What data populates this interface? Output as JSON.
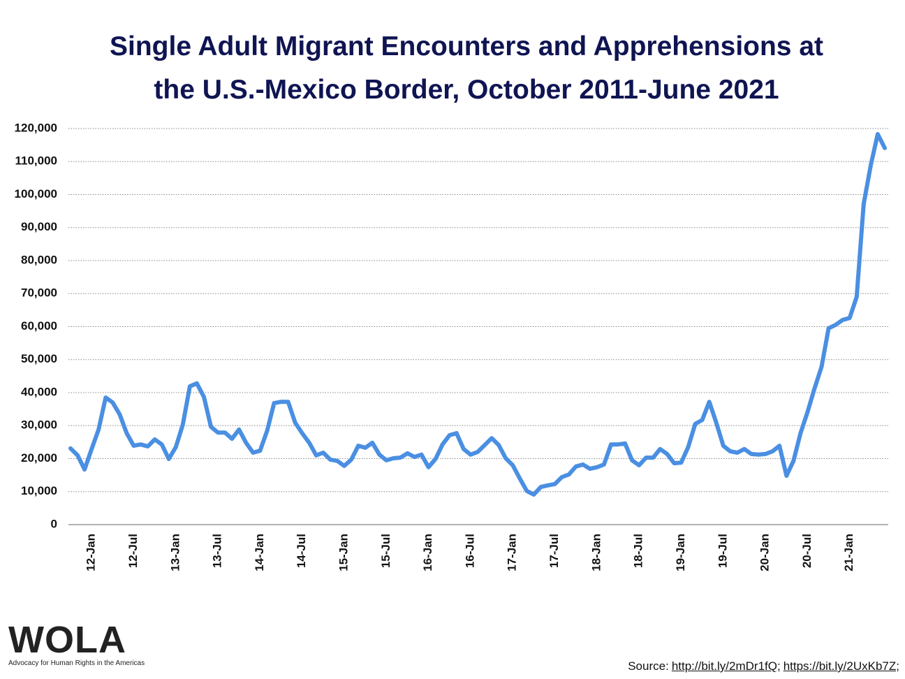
{
  "chart_data": {
    "type": "line",
    "title": "Single Adult Migrant Encounters and Apprehensions at\nthe U.S.-Mexico Border, October 2011-June 2021",
    "categories": [
      null,
      null,
      null,
      "12-Jan",
      null,
      null,
      null,
      null,
      null,
      "12-Jul",
      null,
      null,
      null,
      null,
      null,
      "13-Jan",
      null,
      null,
      null,
      null,
      null,
      "13-Jul",
      null,
      null,
      null,
      null,
      null,
      "14-Jan",
      null,
      null,
      null,
      null,
      null,
      "14-Jul",
      null,
      null,
      null,
      null,
      null,
      "15-Jan",
      null,
      null,
      null,
      null,
      null,
      "15-Jul",
      null,
      null,
      null,
      null,
      null,
      "16-Jan",
      null,
      null,
      null,
      null,
      null,
      "16-Jul",
      null,
      null,
      null,
      null,
      null,
      "17-Jan",
      null,
      null,
      null,
      null,
      null,
      "17-Jul",
      null,
      null,
      null,
      null,
      null,
      "18-Jan",
      null,
      null,
      null,
      null,
      null,
      "18-Jul",
      null,
      null,
      null,
      null,
      null,
      "19-Jan",
      null,
      null,
      null,
      null,
      null,
      "19-Jul",
      null,
      null,
      null,
      null,
      null,
      "20-Jan",
      null,
      null,
      null,
      null,
      null,
      "20-Jul",
      null,
      null,
      null,
      null,
      null,
      "21-Jan",
      null,
      null,
      null,
      null,
      null
    ],
    "values": [
      23100,
      21000,
      16700,
      22900,
      28800,
      38500,
      37000,
      33400,
      27700,
      23900,
      24300,
      23700,
      25800,
      24300,
      19900,
      23500,
      30300,
      41900,
      42800,
      38700,
      29600,
      27900,
      27900,
      26000,
      28800,
      24800,
      21800,
      22400,
      28400,
      36800,
      37200,
      37200,
      30900,
      27700,
      24800,
      21000,
      21800,
      19700,
      19300,
      17800,
      19700,
      23900,
      23300,
      24800,
      21200,
      19500,
      20100,
      20300,
      21600,
      20500,
      21200,
      17400,
      19900,
      24300,
      27100,
      27700,
      22900,
      21200,
      22000,
      24100,
      26200,
      24100,
      20100,
      18000,
      14000,
      10200,
      9100,
      11400,
      11900,
      12300,
      14400,
      15200,
      17600,
      18200,
      16900,
      17400,
      18200,
      24300,
      24300,
      24600,
      19500,
      18000,
      20300,
      20300,
      22900,
      21400,
      18600,
      18800,
      23500,
      30500,
      31700,
      37200,
      30900,
      23900,
      22200,
      21800,
      22900,
      21400,
      21200,
      21400,
      22200,
      23900,
      14800,
      19300,
      27700,
      34100,
      41300,
      47800,
      59500,
      60500,
      62000,
      62600,
      69000,
      97100,
      108800,
      118300,
      114100
    ],
    "color": "#4a8fe2",
    "ylim": [
      0,
      120000
    ],
    "yticks": [
      0,
      {
        "value": 10000,
        "label": "10,000"
      },
      {
        "value": 20000,
        "label": "20,000"
      },
      {
        "value": 30000,
        "label": "30,000"
      },
      {
        "value": 40000,
        "label": "40,000"
      },
      {
        "value": 50000,
        "label": "50,000"
      },
      {
        "value": 60000,
        "label": "60,000"
      },
      {
        "value": 70000,
        "label": "70,000"
      },
      {
        "value": 80000,
        "label": "80,000"
      },
      {
        "value": 90000,
        "label": "90,000"
      },
      {
        "value": 100000,
        "label": "100,000"
      },
      {
        "value": 110000,
        "label": "110,000"
      },
      {
        "value": 120000,
        "label": "120,000"
      }
    ],
    "grid": true
  },
  "logo": {
    "word": "WOLA",
    "tagline": "Advocacy for Human Rights in the Americas"
  },
  "source": {
    "prefix": "Source:",
    "links": [
      "http://bit.ly/2mDr1fQ;",
      "https://bit.ly/2UxKb7Z;"
    ]
  }
}
